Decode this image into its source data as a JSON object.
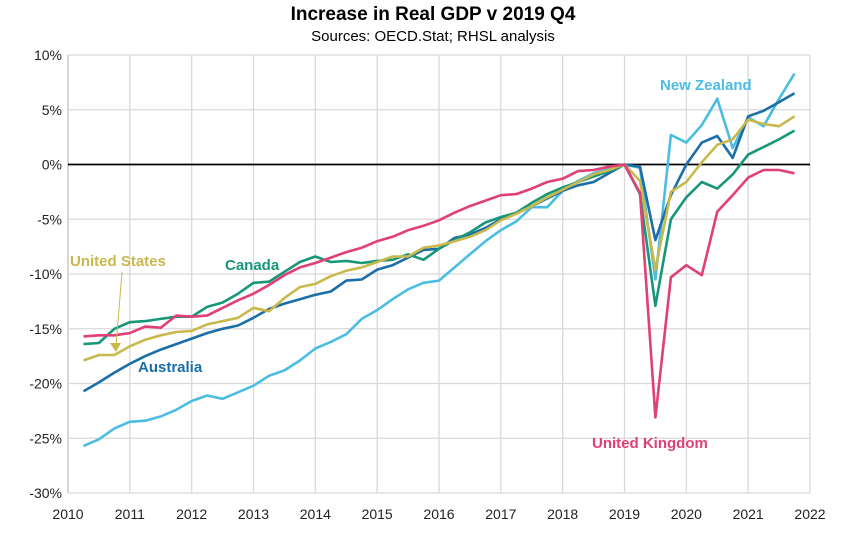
{
  "chart_data": {
    "type": "line",
    "title": "Increase in Real GDP v 2019 Q4",
    "subtitle": "Sources: OECD.Stat; RHSL analysis",
    "xlabel": "",
    "ylabel": "",
    "xlim": [
      2010,
      2022
    ],
    "ylim": [
      -30,
      10
    ],
    "x_ticks": [
      "2010",
      "2011",
      "2012",
      "2013",
      "2014",
      "2015",
      "2016",
      "2017",
      "2018",
      "2019",
      "2020",
      "2021",
      "2022"
    ],
    "y_ticks": [
      "10%",
      "5%",
      "0%",
      "-5%",
      "-10%",
      "-15%",
      "-20%",
      "-25%",
      "-30%"
    ],
    "grid": true,
    "legend": "none (direct labels)",
    "x_start": 2010.25,
    "x_step": 0.25,
    "series": [
      {
        "name": "New Zealand",
        "color": "#4BBDE3",
        "values": [
          -25.7,
          -25.1,
          -24.1,
          -23.5,
          -23.4,
          -23.0,
          -22.4,
          -21.6,
          -21.1,
          -21.4,
          -20.8,
          -20.2,
          -19.3,
          -18.8,
          -17.9,
          -16.8,
          -16.2,
          -15.5,
          -14.1,
          -13.3,
          -12.3,
          -11.4,
          -10.8,
          -10.6,
          -9.4,
          -8.2,
          -7.0,
          -6.0,
          -5.2,
          -3.9,
          -3.9,
          -2.4,
          -1.5,
          -0.8,
          -0.4,
          0,
          -0.3,
          -10.5,
          2.7,
          2.0,
          3.6,
          6.0,
          1.5,
          4.3,
          3.5,
          6.0,
          8.3
        ]
      },
      {
        "name": "Australia",
        "color": "#1B6EA8",
        "values": [
          -20.7,
          -19.9,
          -19.0,
          -18.2,
          -17.5,
          -16.9,
          -16.4,
          -15.9,
          -15.4,
          -15.0,
          -14.7,
          -14.0,
          -13.2,
          -12.7,
          -12.3,
          -11.9,
          -11.6,
          -10.6,
          -10.5,
          -9.6,
          -9.2,
          -8.5,
          -7.8,
          -7.7,
          -6.7,
          -6.4,
          -5.8,
          -5.0,
          -4.4,
          -3.8,
          -3.1,
          -2.4,
          -1.9,
          -1.6,
          -0.8,
          0,
          -0.2,
          -6.9,
          -2.8,
          0,
          2.0,
          2.6,
          0.6,
          4.4,
          4.9,
          5.7,
          6.5
        ]
      },
      {
        "name": "Canada",
        "color": "#17967A",
        "values": [
          -16.4,
          -16.3,
          -15.0,
          -14.4,
          -14.3,
          -14.1,
          -13.9,
          -13.9,
          -13.0,
          -12.6,
          -11.8,
          -10.8,
          -10.7,
          -9.8,
          -8.9,
          -8.4,
          -8.9,
          -8.8,
          -9.0,
          -8.8,
          -8.7,
          -8.2,
          -8.7,
          -7.7,
          -6.9,
          -6.2,
          -5.3,
          -4.8,
          -4.4,
          -3.5,
          -2.7,
          -2.1,
          -1.6,
          -1.1,
          -0.6,
          0,
          -2.7,
          -12.9,
          -5.0,
          -3.0,
          -1.6,
          -2.2,
          -0.9,
          0.9,
          1.6,
          2.3,
          3.1
        ]
      },
      {
        "name": "United States",
        "color": "#C9B84C",
        "values": [
          -17.9,
          -17.4,
          -17.4,
          -16.6,
          -16.0,
          -15.6,
          -15.3,
          -15.2,
          -14.6,
          -14.3,
          -14.0,
          -13.1,
          -13.4,
          -12.2,
          -11.2,
          -10.9,
          -10.2,
          -9.7,
          -9.4,
          -8.9,
          -8.4,
          -8.4,
          -7.6,
          -7.4,
          -7.0,
          -6.6,
          -6.0,
          -5.1,
          -4.5,
          -3.8,
          -3.0,
          -2.3,
          -1.6,
          -0.9,
          -0.5,
          0,
          -1.5,
          -9.6,
          -2.5,
          -1.6,
          0.2,
          1.8,
          2.3,
          4.1,
          3.7,
          3.5,
          4.4
        ]
      },
      {
        "name": "United Kingdom",
        "color": "#E03F78",
        "values": [
          -15.7,
          -15.6,
          -15.6,
          -15.4,
          -14.8,
          -14.9,
          -13.8,
          -13.9,
          -13.8,
          -13.1,
          -12.4,
          -11.8,
          -11.0,
          -10.1,
          -9.4,
          -9.0,
          -8.5,
          -8.0,
          -7.6,
          -7.0,
          -6.6,
          -6.0,
          -5.6,
          -5.1,
          -4.4,
          -3.8,
          -3.3,
          -2.8,
          -2.7,
          -2.2,
          -1.6,
          -1.3,
          -0.6,
          -0.5,
          -0.2,
          0,
          -2.6,
          -23.1,
          -10.3,
          -9.2,
          -10.1,
          -4.3,
          -2.8,
          -1.2,
          -0.5,
          -0.5,
          -0.8
        ]
      }
    ]
  }
}
